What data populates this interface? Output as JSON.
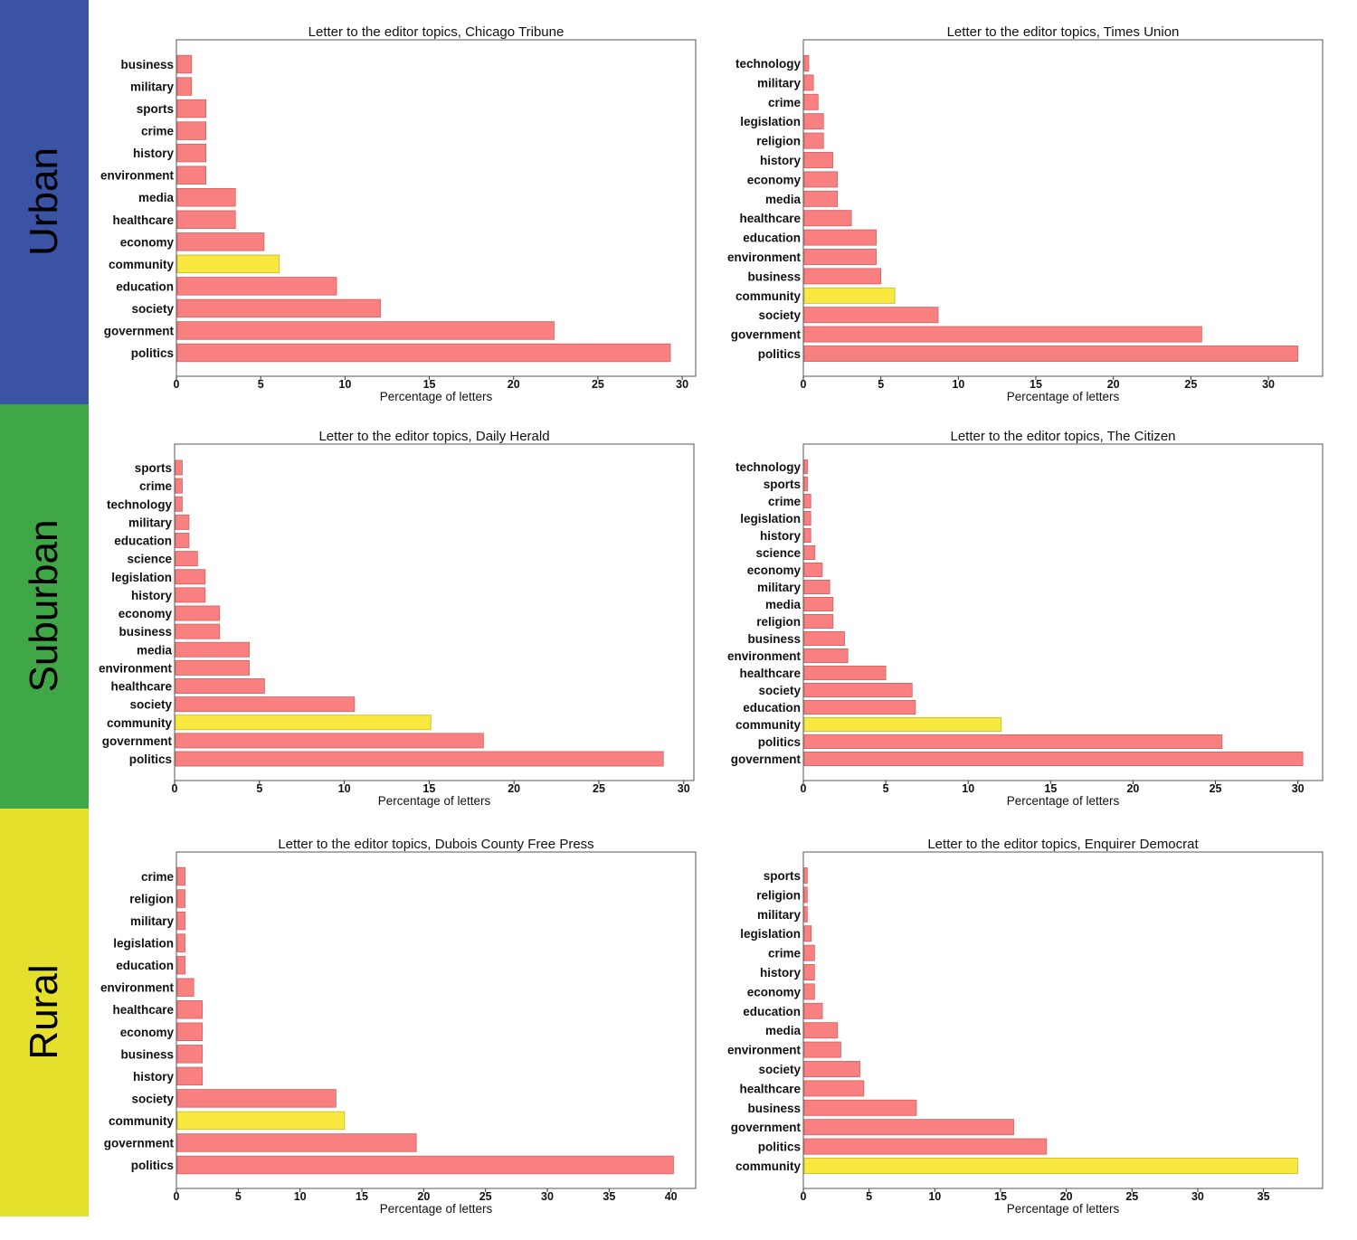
{
  "bands": [
    {
      "label": "Urban",
      "color": "#3a53a4"
    },
    {
      "label": "Suburban",
      "color": "#3fa745"
    },
    {
      "label": "Rural",
      "color": "#e4e02c"
    }
  ],
  "colors": {
    "bar": "#f88080",
    "bar_edge": "#d06060",
    "highlight": "#f8e840",
    "highlight_edge": "#c8b820"
  },
  "chart_data": [
    {
      "type": "bar",
      "orientation": "horizontal",
      "title": "Letter to the editor topics, Chicago Tribune",
      "xlabel": "Percentage of letters",
      "xticks": [
        0,
        5,
        10,
        15,
        20,
        25,
        30
      ],
      "xlim": [
        0,
        30.8
      ],
      "highlight": "community",
      "categories": [
        "business",
        "military",
        "sports",
        "crime",
        "history",
        "environment",
        "media",
        "healthcare",
        "economy",
        "community",
        "education",
        "society",
        "government",
        "politics"
      ],
      "values": [
        0.9,
        0.9,
        1.75,
        1.75,
        1.75,
        1.75,
        3.5,
        3.5,
        5.2,
        6.1,
        9.5,
        12.1,
        22.4,
        29.3
      ]
    },
    {
      "type": "bar",
      "orientation": "horizontal",
      "title": "Letter to the editor topics, Times Union",
      "xlabel": "Percentage of letters",
      "xticks": [
        0,
        5,
        10,
        15,
        20,
        25,
        30
      ],
      "xlim": [
        0,
        33.5
      ],
      "highlight": "community",
      "categories": [
        "technology",
        "military",
        "crime",
        "legislation",
        "religion",
        "history",
        "economy",
        "media",
        "healthcare",
        "education",
        "environment",
        "business",
        "community",
        "society",
        "government",
        "politics"
      ],
      "values": [
        0.35,
        0.65,
        0.95,
        1.3,
        1.3,
        1.9,
        2.2,
        2.2,
        3.1,
        4.7,
        4.7,
        5.0,
        5.9,
        8.7,
        25.7,
        31.9
      ]
    },
    {
      "type": "bar",
      "orientation": "horizontal",
      "title": "Letter to the editor topics, Daily Herald",
      "xlabel": "Percentage of letters",
      "xticks": [
        0,
        5,
        10,
        15,
        20,
        25,
        30
      ],
      "xlim": [
        0,
        30.6
      ],
      "highlight": "community",
      "categories": [
        "sports",
        "crime",
        "technology",
        "military",
        "education",
        "science",
        "legislation",
        "history",
        "economy",
        "business",
        "media",
        "environment",
        "healthcare",
        "society",
        "community",
        "government",
        "politics"
      ],
      "values": [
        0.45,
        0.45,
        0.45,
        0.85,
        0.85,
        1.35,
        1.8,
        1.8,
        2.65,
        2.65,
        4.4,
        4.4,
        5.3,
        10.6,
        15.1,
        18.2,
        28.8
      ]
    },
    {
      "type": "bar",
      "orientation": "horizontal",
      "title": "Letter to the editor topics, The Citizen",
      "xlabel": "Percentage of letters",
      "xticks": [
        0,
        5,
        10,
        15,
        20,
        25,
        30
      ],
      "xlim": [
        0,
        31.5
      ],
      "highlight": "community",
      "categories": [
        "technology",
        "sports",
        "crime",
        "legislation",
        "history",
        "science",
        "economy",
        "military",
        "media",
        "religion",
        "business",
        "environment",
        "healthcare",
        "society",
        "education",
        "community",
        "politics",
        "government"
      ],
      "values": [
        0.25,
        0.25,
        0.45,
        0.45,
        0.45,
        0.7,
        1.15,
        1.6,
        1.8,
        1.8,
        2.5,
        2.7,
        5.0,
        6.6,
        6.8,
        12.0,
        25.4,
        30.3
      ]
    },
    {
      "type": "bar",
      "orientation": "horizontal",
      "title": "Letter to the editor topics, Dubois County Free Press",
      "xlabel": "Percentage of letters",
      "xticks": [
        0,
        5,
        10,
        15,
        20,
        25,
        30,
        35,
        40
      ],
      "xlim": [
        0,
        42.0
      ],
      "highlight": "community",
      "categories": [
        "crime",
        "religion",
        "military",
        "legislation",
        "education",
        "environment",
        "healthcare",
        "economy",
        "business",
        "history",
        "society",
        "community",
        "government",
        "politics"
      ],
      "values": [
        0.7,
        0.7,
        0.7,
        0.7,
        0.7,
        1.4,
        2.1,
        2.1,
        2.1,
        2.1,
        12.9,
        13.6,
        19.4,
        40.2
      ]
    },
    {
      "type": "bar",
      "orientation": "horizontal",
      "title": "Letter to the editor topics, Enquirer Democrat",
      "xlabel": "Percentage of letters",
      "xticks": [
        0,
        5,
        10,
        15,
        20,
        25,
        30,
        35
      ],
      "xlim": [
        0,
        39.5
      ],
      "highlight": "community",
      "categories": [
        "sports",
        "religion",
        "military",
        "legislation",
        "crime",
        "history",
        "economy",
        "education",
        "media",
        "environment",
        "society",
        "healthcare",
        "business",
        "government",
        "politics",
        "community"
      ],
      "values": [
        0.3,
        0.3,
        0.3,
        0.6,
        0.85,
        0.85,
        0.85,
        1.45,
        2.6,
        2.85,
        4.3,
        4.6,
        8.6,
        16.0,
        18.5,
        37.6
      ]
    }
  ]
}
